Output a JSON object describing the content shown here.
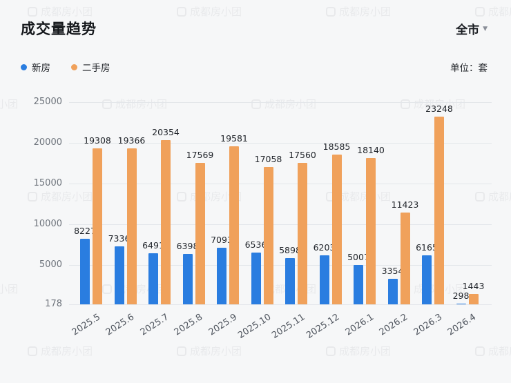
{
  "header": {
    "title": "成交量趋势",
    "region_selector": {
      "label": "全市"
    },
    "unit_label": "单位：套"
  },
  "legend": [
    {
      "label": "新房",
      "color": "#2a7de0"
    },
    {
      "label": "二手房",
      "color": "#f0a15b"
    }
  ],
  "watermark_text": "成都房小团",
  "chart_data": {
    "type": "bar",
    "title": "成交量趋势",
    "categories": [
      "2025.5",
      "2025.6",
      "2025.7",
      "2025.8",
      "2025.9",
      "2025.10",
      "2025.11",
      "2025.12",
      "2026.1",
      "2026.2",
      "2026.3",
      "2026.4"
    ],
    "series": [
      {
        "name": "新房",
        "key": "new-homes",
        "color": "#2a7de0",
        "values": [
          8227,
          7336,
          6491,
          6398,
          7093,
          6536,
          5898,
          6203,
          5007,
          3354,
          6165,
          298
        ]
      },
      {
        "name": "二手房",
        "key": "secondhand-homes",
        "color": "#f0a15b",
        "values": [
          19308,
          19366,
          20354,
          17569,
          19581,
          17058,
          17560,
          18585,
          18140,
          11423,
          23248,
          1443
        ]
      }
    ],
    "y_ticks": [
      178,
      5000,
      10000,
      15000,
      20000,
      25000
    ],
    "ylim": [
      178,
      25000
    ],
    "xlabel": "",
    "ylabel": "",
    "unit": "套",
    "grid": true,
    "legend_position": "top-left"
  }
}
